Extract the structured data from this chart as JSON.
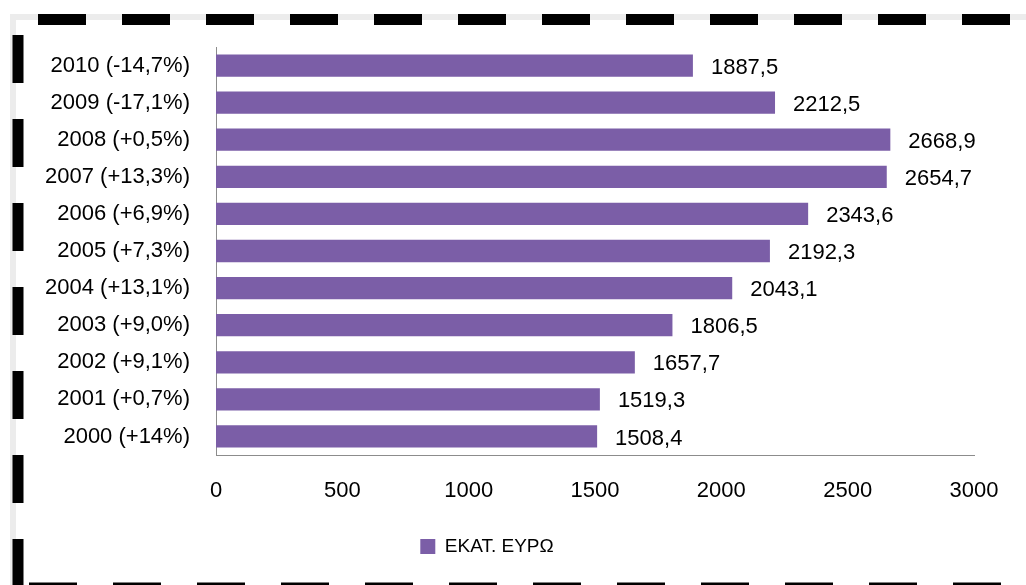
{
  "chart_data": {
    "type": "bar",
    "orientation": "horizontal",
    "categories": [
      "2010 (-14,7%)",
      "2009 (-17,1%)",
      "2008 (+0,5%)",
      "2007 (+13,3%)",
      "2006 (+6,9%)",
      "2005 (+7,3%)",
      "2004 (+13,1%)",
      "2003 (+9,0%)",
      "2002 (+9,1%)",
      "2001 (+0,7%)",
      "2000 (+14%)"
    ],
    "series": [
      {
        "name": "ΕΚΑΤ. ΕΥΡΩ",
        "color": "#7b5ea7",
        "values": [
          1887.5,
          2212.5,
          2668.9,
          2654.7,
          2343.6,
          2192.3,
          2043.1,
          1806.5,
          1657.7,
          1519.3,
          1508.4
        ],
        "value_labels": [
          "1887,5",
          "2212,5",
          "2668,9",
          "2654,7",
          "2343,6",
          "2192,3",
          "2043,1",
          "1806,5",
          "1657,7",
          "1519,3",
          "1508,4"
        ]
      }
    ],
    "xlim": [
      0,
      3000
    ],
    "xticks": [
      0,
      500,
      1000,
      1500,
      2000,
      2500,
      3000
    ],
    "grid": false,
    "legend": "bottom"
  }
}
